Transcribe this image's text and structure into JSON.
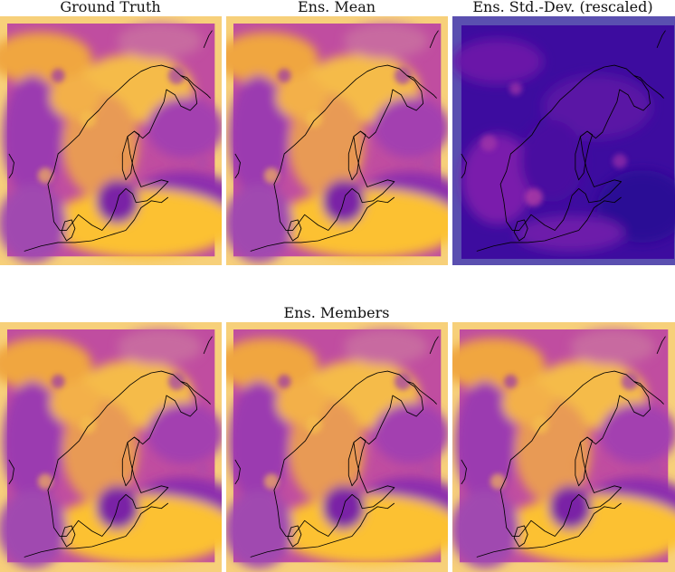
{
  "figure": {
    "titles": {
      "ground_truth": "Ground Truth",
      "ens_mean": "Ens. Mean",
      "ens_std": "Ens. Std.-Dev. (rescaled)",
      "ens_members": "Ens. Members"
    },
    "colormaps": {
      "plasma": [
        "#0d0887",
        "#5302a3",
        "#8b0aa5",
        "#b83289",
        "#db5c68",
        "#f48849",
        "#febd2a",
        "#f0f921"
      ],
      "field_dark": "#8a2aa8",
      "field_light": "#f6b23a",
      "std_background": "#5a4fb0",
      "std_field": "#3a0ca3"
    },
    "coastline_color": "#000000"
  }
}
